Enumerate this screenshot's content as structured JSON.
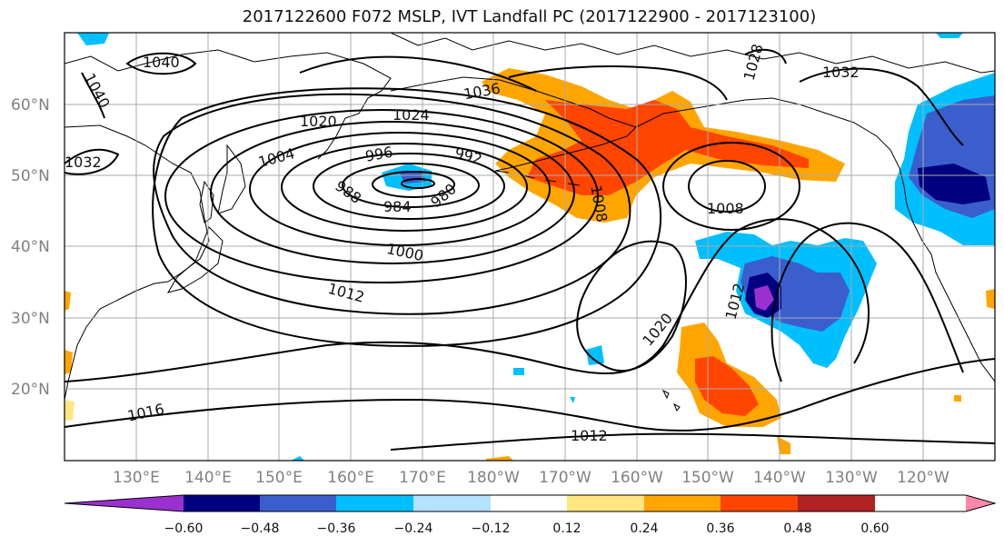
{
  "title": "2017122600 F072 MSLP, IVT Landfall PC (2017122900 - 2017123100)",
  "axes": {
    "lat_ticks": [
      "20°N",
      "30°N",
      "40°N",
      "50°N",
      "60°N"
    ],
    "lon_ticks": [
      "130°E",
      "140°E",
      "150°E",
      "160°E",
      "170°E",
      "180°W",
      "170°W",
      "160°W",
      "150°W",
      "140°W",
      "130°W",
      "120°W"
    ]
  },
  "contours": [
    {
      "label": "1040"
    },
    {
      "label": "1040"
    },
    {
      "label": "1036"
    },
    {
      "label": "1032"
    },
    {
      "label": "1032"
    },
    {
      "label": "1028"
    },
    {
      "label": "1024"
    },
    {
      "label": "1020"
    },
    {
      "label": "1004"
    },
    {
      "label": "996"
    },
    {
      "label": "992"
    },
    {
      "label": "988"
    },
    {
      "label": "984"
    },
    {
      "label": "980"
    },
    {
      "label": "1008"
    },
    {
      "label": "1008"
    },
    {
      "label": "1000"
    },
    {
      "label": "1012"
    },
    {
      "label": "1012"
    },
    {
      "label": "1020"
    },
    {
      "label": "1016"
    },
    {
      "label": "1012"
    }
  ],
  "colorbar": {
    "colors": [
      "#9b30d0",
      "#000080",
      "#3a5fcd",
      "#00bfff",
      "#b2e2ff",
      "#ffffff",
      "#ffe680",
      "#ffa500",
      "#ff4500",
      "#b22222",
      "#ff88aa"
    ],
    "ticks": [
      "−0.60",
      "−0.48",
      "−0.36",
      "−0.24",
      "−0.12",
      "0.12",
      "0.24",
      "0.36",
      "0.48",
      "0.60"
    ]
  }
}
